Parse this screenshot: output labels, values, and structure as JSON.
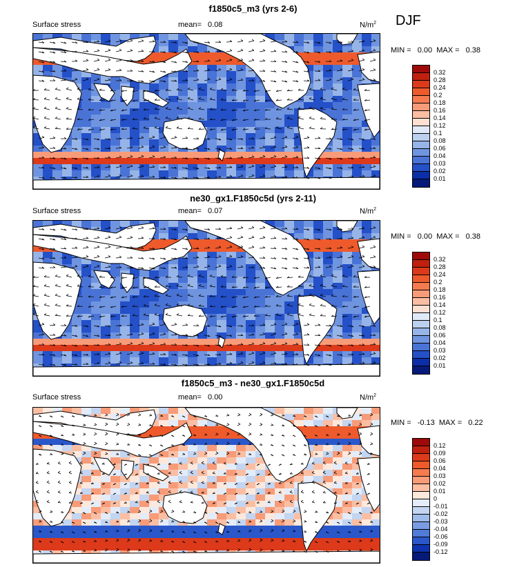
{
  "season": "DJF",
  "panels": [
    {
      "title": "f1850c5_m3 (yrs 2-6)",
      "left_label": "Surface stress",
      "mean_label": "mean=",
      "mean_value": "0.08",
      "units": "N/m",
      "units_exp": "2",
      "min_label": "MIN =",
      "min_value": "0.00",
      "max_label": "MAX =",
      "max_value": "0.38",
      "colorbar": {
        "labels": [
          "0.32",
          "0.28",
          "0.24",
          "0.2",
          "0.18",
          "0.16",
          "0.14",
          "0.12",
          "0.1",
          "0.08",
          "0.06",
          "0.04",
          "0.03",
          "0.02",
          "0.01"
        ],
        "colors": [
          "#9e0a0a",
          "#c0200f",
          "#dc3a1a",
          "#ee5a2c",
          "#f57b4f",
          "#f89b78",
          "#fbbea3",
          "#fde0d2",
          "#dfe9f7",
          "#bcd0f0",
          "#96b4e8",
          "#6f94e0",
          "#4a73d6",
          "#2450c8",
          "#0c2ea8",
          "#061a7a"
        ]
      }
    },
    {
      "title": "ne30_gx1.F1850c5d (yrs 2-11)",
      "left_label": "Surface stress",
      "mean_label": "mean=",
      "mean_value": "0.07",
      "units": "N/m",
      "units_exp": "2",
      "min_label": "MIN =",
      "min_value": "0.00",
      "max_label": "MAX =",
      "max_value": "0.38",
      "colorbar": {
        "labels": [
          "0.32",
          "0.28",
          "0.24",
          "0.2",
          "0.18",
          "0.16",
          "0.14",
          "0.12",
          "0.1",
          "0.08",
          "0.06",
          "0.04",
          "0.03",
          "0.02",
          "0.01"
        ],
        "colors": [
          "#9e0a0a",
          "#c0200f",
          "#dc3a1a",
          "#ee5a2c",
          "#f57b4f",
          "#f89b78",
          "#fbbea3",
          "#fde0d2",
          "#dfe9f7",
          "#bcd0f0",
          "#96b4e8",
          "#6f94e0",
          "#4a73d6",
          "#2450c8",
          "#0c2ea8",
          "#061a7a"
        ]
      }
    },
    {
      "title": "f1850c5_m3 - ne30_gx1.F1850c5d",
      "left_label": "Surface stress",
      "mean_label": "mean=",
      "mean_value": "0.00",
      "units": "N/m",
      "units_exp": "2",
      "min_label": "MIN =",
      "min_value": "-0.13",
      "max_label": "MAX =",
      "max_value": "0.22",
      "colorbar": {
        "labels": [
          "0.12",
          "0.09",
          "0.06",
          "0.04",
          "0.03",
          "0.02",
          "0.01",
          "0",
          "-0.01",
          "-0.02",
          "-0.03",
          "-0.04",
          "-0.06",
          "-0.09",
          "-0.12"
        ],
        "colors": [
          "#9e0a0a",
          "#c0200f",
          "#dc3a1a",
          "#ee5a2c",
          "#f57b4f",
          "#f89b78",
          "#fbbea3",
          "#fde8dc",
          "#e3ecf8",
          "#c3d5f1",
          "#9fbbea",
          "#7a9ce2",
          "#507cd8",
          "#2a57ca",
          "#0f33ae",
          "#061a7a"
        ]
      }
    }
  ]
}
